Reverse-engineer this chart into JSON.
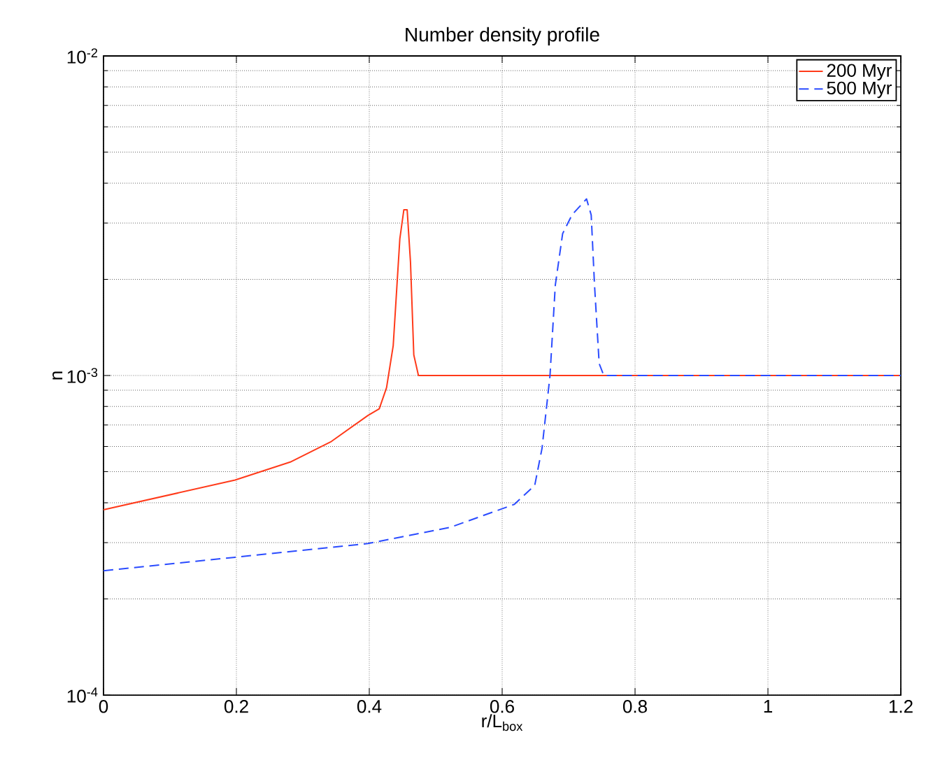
{
  "chart_data": {
    "type": "line",
    "title": "Number density profile",
    "xlabel": "r/L$_{box}$",
    "ylabel": "n",
    "log": "y",
    "grid": true,
    "legend": "top right",
    "xlim": [
      0,
      1.2
    ],
    "xticks": [
      0,
      0.2,
      0.4,
      0.6,
      0.8,
      1,
      1.2
    ],
    "ylim": [
      0.0001,
      0.01
    ],
    "yticks": [
      {
        "value": 0.0001,
        "label": "10$^{-4}$"
      },
      {
        "value": 0.001,
        "label": "10$^{-3}$"
      },
      {
        "value": 0.01,
        "label": "10$^{-2}$"
      }
    ],
    "series": [
      {
        "name": "200 Myr",
        "color": "#ff3a1a",
        "line_style": "solid",
        "x": [
          0,
          0.198,
          0.281,
          0.343,
          0.398,
          0.415,
          0.426,
          0.436,
          0.446,
          0.452,
          0.457,
          0.462,
          0.467,
          0.474,
          0.6,
          0.8,
          1.0,
          1.2
        ],
        "values": [
          0.00038,
          0.000471,
          0.000536,
          0.000622,
          0.00075,
          0.000787,
          0.000916,
          0.00124,
          0.00268,
          0.0033,
          0.0033,
          0.00227,
          0.00116,
          0.001,
          0.001,
          0.001,
          0.001,
          0.001
        ]
      },
      {
        "name": "500 Myr",
        "color": "#2a4bff",
        "line_style": "dashed",
        "x": [
          0,
          0.198,
          0.398,
          0.522,
          0.618,
          0.649,
          0.66,
          0.672,
          0.68,
          0.691,
          0.705,
          0.727,
          0.734,
          0.739,
          0.746,
          0.753,
          0.9,
          1.0,
          1.2
        ],
        "values": [
          0.000245,
          0.00027,
          0.000298,
          0.000335,
          0.000395,
          0.000453,
          0.000592,
          0.001,
          0.00192,
          0.00278,
          0.00318,
          0.00357,
          0.00318,
          0.00192,
          0.00109,
          0.001,
          0.001,
          0.001,
          0.001
        ]
      }
    ]
  }
}
